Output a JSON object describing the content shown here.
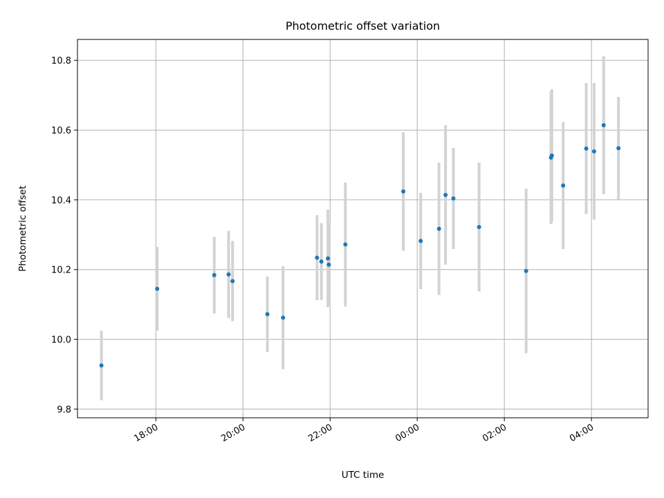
{
  "chart_data": {
    "type": "scatter",
    "title": "Photometric offset variation",
    "xlabel": "UTC time",
    "ylabel": "Photometric offset",
    "x_unit": "UTC time (hours; values above 24 fall after midnight)",
    "xlim": [
      16.2,
      29.3
    ],
    "ylim": [
      9.775,
      10.86
    ],
    "grid": true,
    "legend": "none",
    "x_ticks": [
      {
        "value": 18,
        "label": "18:00"
      },
      {
        "value": 20,
        "label": "20:00"
      },
      {
        "value": 22,
        "label": "22:00"
      },
      {
        "value": 24,
        "label": "00:00"
      },
      {
        "value": 26,
        "label": "02:00"
      },
      {
        "value": 28,
        "label": "04:00"
      }
    ],
    "y_ticks": [
      {
        "value": 9.8,
        "label": "9.8"
      },
      {
        "value": 10.0,
        "label": "10.0"
      },
      {
        "value": 10.2,
        "label": "10.2"
      },
      {
        "value": 10.4,
        "label": "10.4"
      },
      {
        "value": 10.6,
        "label": "10.6"
      },
      {
        "value": 10.8,
        "label": "10.8"
      }
    ],
    "colors": {
      "point": "#1f77b4",
      "errorbar": "#d3d3d3",
      "grid": "#b0b0b0"
    },
    "points": [
      {
        "x": 16.75,
        "y": 9.925,
        "yerr": 0.1
      },
      {
        "x": 18.03,
        "y": 10.145,
        "yerr": 0.12
      },
      {
        "x": 19.34,
        "y": 10.184,
        "yerr": 0.11
      },
      {
        "x": 19.67,
        "y": 10.186,
        "yerr": 0.125
      },
      {
        "x": 19.76,
        "y": 10.167,
        "yerr": 0.115
      },
      {
        "x": 20.56,
        "y": 10.072,
        "yerr": 0.108
      },
      {
        "x": 20.92,
        "y": 10.062,
        "yerr": 0.148
      },
      {
        "x": 21.7,
        "y": 10.234,
        "yerr": 0.122
      },
      {
        "x": 21.8,
        "y": 10.223,
        "yerr": 0.11
      },
      {
        "x": 21.95,
        "y": 10.232,
        "yerr": 0.14
      },
      {
        "x": 21.97,
        "y": 10.214,
        "yerr": 0.12
      },
      {
        "x": 22.35,
        "y": 10.272,
        "yerr": 0.178
      },
      {
        "x": 23.68,
        "y": 10.424,
        "yerr": 0.17
      },
      {
        "x": 24.08,
        "y": 10.282,
        "yerr": 0.138
      },
      {
        "x": 24.5,
        "y": 10.317,
        "yerr": 0.19
      },
      {
        "x": 24.65,
        "y": 10.414,
        "yerr": 0.2
      },
      {
        "x": 24.83,
        "y": 10.404,
        "yerr": 0.145
      },
      {
        "x": 25.42,
        "y": 10.322,
        "yerr": 0.185
      },
      {
        "x": 26.5,
        "y": 10.196,
        "yerr": 0.236
      },
      {
        "x": 27.07,
        "y": 10.521,
        "yerr": 0.19
      },
      {
        "x": 27.09,
        "y": 10.527,
        "yerr": 0.19
      },
      {
        "x": 27.35,
        "y": 10.441,
        "yerr": 0.182
      },
      {
        "x": 27.88,
        "y": 10.547,
        "yerr": 0.188
      },
      {
        "x": 28.06,
        "y": 10.539,
        "yerr": 0.196
      },
      {
        "x": 28.28,
        "y": 10.614,
        "yerr": 0.198
      },
      {
        "x": 28.62,
        "y": 10.548,
        "yerr": 0.147
      }
    ]
  }
}
